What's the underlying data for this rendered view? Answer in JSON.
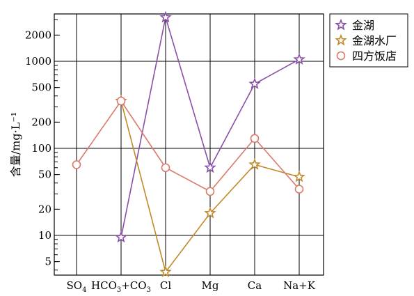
{
  "chart_data": {
    "type": "line",
    "y_scale": "log",
    "ylim": [
      3.5,
      3500
    ],
    "ylabel": "含量/mg·L⁻¹",
    "grid": true,
    "legend_position": "top-right",
    "categories": [
      {
        "label": "SO",
        "sub": "4",
        "rest": ""
      },
      {
        "label": "HCO",
        "sub": "3",
        "rest": "+CO",
        "sub2": "3"
      },
      {
        "label": "Cl",
        "sub": "",
        "rest": ""
      },
      {
        "label": "Mg",
        "sub": "",
        "rest": ""
      },
      {
        "label": "Ca",
        "sub": "",
        "rest": ""
      },
      {
        "label": "Na+K",
        "sub": "",
        "rest": ""
      }
    ],
    "category_text": [
      "SO4",
      "HCO3+CO3",
      "Cl",
      "Mg",
      "Ca",
      "Na+K"
    ],
    "y_ticks": [
      5,
      10,
      20,
      50,
      100,
      200,
      500,
      1000,
      2000
    ],
    "y_major_grid": [
      10,
      100,
      1000
    ],
    "series": [
      {
        "name": "金湖",
        "marker": "star",
        "color": "#8a4fa8",
        "values": [
          null,
          9.5,
          3200,
          60,
          550,
          1050
        ]
      },
      {
        "name": "金湖水厂",
        "marker": "star",
        "color": "#c08a2a",
        "values": [
          null,
          350,
          3.8,
          18,
          65,
          47
        ]
      },
      {
        "name": "四方饭店",
        "marker": "circle",
        "color": "#d97a6a",
        "values": [
          65,
          350,
          60,
          32,
          130,
          34
        ]
      }
    ]
  }
}
